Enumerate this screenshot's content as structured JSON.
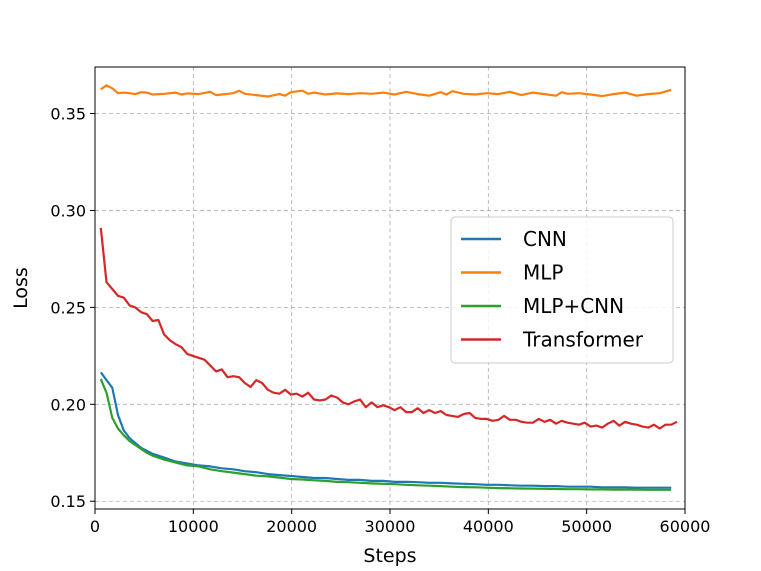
{
  "chart_data": {
    "type": "line",
    "xlabel": "Steps",
    "ylabel": "Loss",
    "xlim": [
      0,
      60000
    ],
    "ylim": [
      0.146,
      0.374
    ],
    "xticks": [
      0,
      10000,
      20000,
      30000,
      40000,
      50000,
      60000
    ],
    "yticks": [
      0.15,
      0.2,
      0.25,
      0.3,
      0.35
    ],
    "grid": true,
    "legend_position": "center-right",
    "series": [
      {
        "name": "CNN",
        "color": "#1f77b4",
        "points": [
          [
            586,
            0.2165
          ],
          [
            1172,
            0.2125
          ],
          [
            1758,
            0.2085
          ],
          [
            2344,
            0.1945
          ],
          [
            2930,
            0.1865
          ],
          [
            3516,
            0.1825
          ],
          [
            4102,
            0.18
          ],
          [
            4688,
            0.1775
          ],
          [
            5274,
            0.176
          ],
          [
            5860,
            0.1745
          ],
          [
            7032,
            0.1725
          ],
          [
            8204,
            0.1705
          ],
          [
            9376,
            0.1695
          ],
          [
            10548,
            0.1685
          ],
          [
            11720,
            0.168
          ],
          [
            12892,
            0.167
          ],
          [
            14064,
            0.1665
          ],
          [
            15236,
            0.1655
          ],
          [
            16408,
            0.165
          ],
          [
            17580,
            0.164
          ],
          [
            18752,
            0.1635
          ],
          [
            19924,
            0.163
          ],
          [
            21096,
            0.1625
          ],
          [
            22268,
            0.162
          ],
          [
            23440,
            0.162
          ],
          [
            24612,
            0.1615
          ],
          [
            25784,
            0.161
          ],
          [
            26956,
            0.161
          ],
          [
            28128,
            0.1605
          ],
          [
            29300,
            0.1605
          ],
          [
            30472,
            0.16
          ],
          [
            31644,
            0.16
          ],
          [
            32816,
            0.1598
          ],
          [
            33988,
            0.1595
          ],
          [
            35160,
            0.1595
          ],
          [
            36332,
            0.1592
          ],
          [
            37504,
            0.159
          ],
          [
            38676,
            0.1588
          ],
          [
            39848,
            0.1585
          ],
          [
            41020,
            0.1585
          ],
          [
            42192,
            0.1582
          ],
          [
            43364,
            0.158
          ],
          [
            44536,
            0.158
          ],
          [
            45708,
            0.1578
          ],
          [
            46880,
            0.1578
          ],
          [
            48052,
            0.1575
          ],
          [
            49224,
            0.1575
          ],
          [
            50396,
            0.1575
          ],
          [
            51568,
            0.1572
          ],
          [
            52740,
            0.1572
          ],
          [
            53912,
            0.1572
          ],
          [
            55084,
            0.157
          ],
          [
            56256,
            0.157
          ],
          [
            57428,
            0.157
          ],
          [
            58600,
            0.157
          ]
        ]
      },
      {
        "name": "MLP",
        "color": "#ff7f0e",
        "points": [
          [
            586,
            0.3625
          ],
          [
            1172,
            0.3645
          ],
          [
            1758,
            0.363
          ],
          [
            2344,
            0.3605
          ],
          [
            2930,
            0.3608
          ],
          [
            3516,
            0.3605
          ],
          [
            4102,
            0.36
          ],
          [
            4688,
            0.361
          ],
          [
            5274,
            0.3608
          ],
          [
            5860,
            0.3598
          ],
          [
            7032,
            0.3602
          ],
          [
            8204,
            0.3608
          ],
          [
            8790,
            0.3598
          ],
          [
            9376,
            0.3604
          ],
          [
            10548,
            0.36
          ],
          [
            11720,
            0.3612
          ],
          [
            12306,
            0.3595
          ],
          [
            12892,
            0.3598
          ],
          [
            14064,
            0.3605
          ],
          [
            14650,
            0.3618
          ],
          [
            15236,
            0.3602
          ],
          [
            16408,
            0.3595
          ],
          [
            17580,
            0.3588
          ],
          [
            18752,
            0.36
          ],
          [
            19338,
            0.3592
          ],
          [
            19924,
            0.361
          ],
          [
            21096,
            0.3618
          ],
          [
            21682,
            0.3602
          ],
          [
            22268,
            0.3608
          ],
          [
            23440,
            0.3598
          ],
          [
            24612,
            0.3604
          ],
          [
            25784,
            0.36
          ],
          [
            26956,
            0.3605
          ],
          [
            28128,
            0.3602
          ],
          [
            29300,
            0.3608
          ],
          [
            30472,
            0.3598
          ],
          [
            31644,
            0.3612
          ],
          [
            32816,
            0.36
          ],
          [
            33988,
            0.3592
          ],
          [
            35160,
            0.361
          ],
          [
            35746,
            0.3598
          ],
          [
            36332,
            0.3615
          ],
          [
            37504,
            0.3602
          ],
          [
            38676,
            0.3598
          ],
          [
            39848,
            0.3605
          ],
          [
            41020,
            0.36
          ],
          [
            42192,
            0.3612
          ],
          [
            43364,
            0.3595
          ],
          [
            44536,
            0.3608
          ],
          [
            45708,
            0.36
          ],
          [
            46880,
            0.3592
          ],
          [
            47466,
            0.361
          ],
          [
            48052,
            0.3602
          ],
          [
            49224,
            0.3605
          ],
          [
            50396,
            0.3598
          ],
          [
            51568,
            0.359
          ],
          [
            52740,
            0.36
          ],
          [
            53912,
            0.3608
          ],
          [
            55084,
            0.3592
          ],
          [
            56256,
            0.36
          ],
          [
            57428,
            0.3605
          ],
          [
            58600,
            0.3622
          ]
        ]
      },
      {
        "name": "MLP+CNN",
        "color": "#2ca02c",
        "points": [
          [
            586,
            0.213
          ],
          [
            1172,
            0.206
          ],
          [
            1758,
            0.193
          ],
          [
            2344,
            0.1875
          ],
          [
            2930,
            0.184
          ],
          [
            3516,
            0.181
          ],
          [
            4102,
            0.179
          ],
          [
            4688,
            0.177
          ],
          [
            5274,
            0.175
          ],
          [
            5860,
            0.1735
          ],
          [
            7032,
            0.1715
          ],
          [
            8204,
            0.17
          ],
          [
            9376,
            0.1685
          ],
          [
            10548,
            0.168
          ],
          [
            11720,
            0.1665
          ],
          [
            12892,
            0.1655
          ],
          [
            14064,
            0.1648
          ],
          [
            15236,
            0.164
          ],
          [
            16408,
            0.1632
          ],
          [
            17580,
            0.1628
          ],
          [
            18752,
            0.1622
          ],
          [
            19924,
            0.1615
          ],
          [
            21096,
            0.1612
          ],
          [
            22268,
            0.1608
          ],
          [
            23440,
            0.1605
          ],
          [
            24612,
            0.16
          ],
          [
            25784,
            0.1598
          ],
          [
            26956,
            0.1595
          ],
          [
            28128,
            0.1592
          ],
          [
            29300,
            0.159
          ],
          [
            30472,
            0.1588
          ],
          [
            31644,
            0.1585
          ],
          [
            32816,
            0.1582
          ],
          [
            33988,
            0.158
          ],
          [
            35160,
            0.1578
          ],
          [
            36332,
            0.1575
          ],
          [
            37504,
            0.1573
          ],
          [
            38676,
            0.1572
          ],
          [
            39848,
            0.157
          ],
          [
            41020,
            0.1568
          ],
          [
            42192,
            0.1567
          ],
          [
            43364,
            0.1566
          ],
          [
            44536,
            0.1565
          ],
          [
            45708,
            0.1564
          ],
          [
            46880,
            0.1563
          ],
          [
            48052,
            0.1562
          ],
          [
            49224,
            0.1562
          ],
          [
            50396,
            0.1561
          ],
          [
            51568,
            0.1561
          ],
          [
            52740,
            0.156
          ],
          [
            53912,
            0.156
          ],
          [
            55084,
            0.156
          ],
          [
            56256,
            0.1559
          ],
          [
            57428,
            0.1559
          ],
          [
            58600,
            0.1559
          ]
        ]
      },
      {
        "name": "Transformer",
        "color": "#d62728",
        "points": [
          [
            586,
            0.291
          ],
          [
            1172,
            0.263
          ],
          [
            1758,
            0.2595
          ],
          [
            2344,
            0.256
          ],
          [
            2930,
            0.255
          ],
          [
            3516,
            0.251
          ],
          [
            4102,
            0.25
          ],
          [
            4688,
            0.2475
          ],
          [
            5274,
            0.2465
          ],
          [
            5860,
            0.243
          ],
          [
            6446,
            0.2435
          ],
          [
            7032,
            0.236
          ],
          [
            7618,
            0.233
          ],
          [
            8204,
            0.231
          ],
          [
            8790,
            0.2295
          ],
          [
            9376,
            0.226
          ],
          [
            9962,
            0.225
          ],
          [
            10548,
            0.224
          ],
          [
            11134,
            0.223
          ],
          [
            11720,
            0.22
          ],
          [
            12306,
            0.217
          ],
          [
            12892,
            0.218
          ],
          [
            13478,
            0.214
          ],
          [
            14064,
            0.2145
          ],
          [
            14650,
            0.214
          ],
          [
            15236,
            0.211
          ],
          [
            15822,
            0.209
          ],
          [
            16408,
            0.2125
          ],
          [
            16994,
            0.211
          ],
          [
            17580,
            0.2075
          ],
          [
            18166,
            0.206
          ],
          [
            18752,
            0.2055
          ],
          [
            19338,
            0.2075
          ],
          [
            19924,
            0.205
          ],
          [
            20510,
            0.2055
          ],
          [
            21096,
            0.204
          ],
          [
            21682,
            0.206
          ],
          [
            22268,
            0.2025
          ],
          [
            22854,
            0.202
          ],
          [
            23440,
            0.2025
          ],
          [
            24026,
            0.2045
          ],
          [
            24612,
            0.2035
          ],
          [
            25198,
            0.201
          ],
          [
            25784,
            0.2
          ],
          [
            26370,
            0.2015
          ],
          [
            26956,
            0.2025
          ],
          [
            27542,
            0.1985
          ],
          [
            28128,
            0.201
          ],
          [
            28714,
            0.1985
          ],
          [
            29300,
            0.1995
          ],
          [
            29886,
            0.1985
          ],
          [
            30472,
            0.197
          ],
          [
            31058,
            0.1985
          ],
          [
            31644,
            0.196
          ],
          [
            32230,
            0.196
          ],
          [
            32816,
            0.198
          ],
          [
            33402,
            0.1955
          ],
          [
            33988,
            0.197
          ],
          [
            34574,
            0.1955
          ],
          [
            35160,
            0.1965
          ],
          [
            35746,
            0.1945
          ],
          [
            36332,
            0.194
          ],
          [
            36918,
            0.1935
          ],
          [
            37504,
            0.195
          ],
          [
            38090,
            0.1955
          ],
          [
            38676,
            0.193
          ],
          [
            39262,
            0.1925
          ],
          [
            39848,
            0.1925
          ],
          [
            40434,
            0.1915
          ],
          [
            41020,
            0.192
          ],
          [
            41606,
            0.194
          ],
          [
            42192,
            0.192
          ],
          [
            42778,
            0.192
          ],
          [
            43364,
            0.191
          ],
          [
            43950,
            0.1905
          ],
          [
            44536,
            0.1905
          ],
          [
            45122,
            0.1925
          ],
          [
            45708,
            0.191
          ],
          [
            46294,
            0.192
          ],
          [
            46880,
            0.19
          ],
          [
            47466,
            0.1915
          ],
          [
            48052,
            0.1905
          ],
          [
            48638,
            0.19
          ],
          [
            49224,
            0.1895
          ],
          [
            49810,
            0.1905
          ],
          [
            50396,
            0.1885
          ],
          [
            50982,
            0.189
          ],
          [
            51568,
            0.188
          ],
          [
            52154,
            0.19
          ],
          [
            52740,
            0.1915
          ],
          [
            53326,
            0.189
          ],
          [
            53912,
            0.191
          ],
          [
            54498,
            0.19
          ],
          [
            55084,
            0.1895
          ],
          [
            55670,
            0.1885
          ],
          [
            56256,
            0.188
          ],
          [
            56842,
            0.1895
          ],
          [
            57428,
            0.1875
          ],
          [
            58014,
            0.1895
          ],
          [
            58600,
            0.1895
          ],
          [
            59186,
            0.191
          ]
        ]
      }
    ]
  }
}
